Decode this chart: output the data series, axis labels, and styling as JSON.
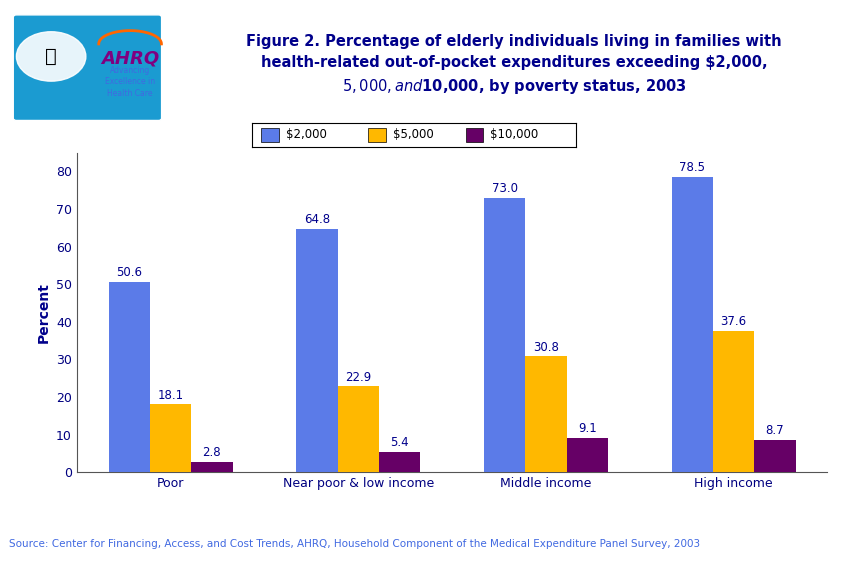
{
  "title": "Figure 2. Percentage of elderly individuals living in families with\nhealth-related out-of-pocket expenditures exceeding $2,000,\n$5,000, and $10,000, by poverty status, 2003",
  "categories": [
    "Poor",
    "Near poor & low income",
    "Middle income",
    "High income"
  ],
  "series": [
    {
      "label": "$2,000",
      "color": "#5B7BE8",
      "values": [
        50.6,
        64.8,
        73.0,
        78.5
      ]
    },
    {
      "label": "$5,000",
      "color": "#FFB800",
      "values": [
        18.1,
        22.9,
        30.8,
        37.6
      ]
    },
    {
      "label": "$10,000",
      "color": "#660066",
      "values": [
        2.8,
        5.4,
        9.1,
        8.7
      ]
    }
  ],
  "ylabel": "Percent",
  "ylim": [
    0,
    85
  ],
  "yticks": [
    0,
    10,
    20,
    30,
    40,
    50,
    60,
    70,
    80
  ],
  "source_text": "Source: Center for Financing, Access, and Cost Trends, AHRQ, Household Component of the Medical Expenditure Panel Survey, 2003",
  "bg_color": "#FFFFFF",
  "chart_bg": "#FFFFFF",
  "bar_width": 0.22,
  "title_color": "#00008B",
  "value_label_color": "#00008B",
  "axis_label_color": "#00008B",
  "tick_label_color": "#000080",
  "source_color": "#4169E1",
  "header_border_color": "#00008B",
  "header_bg": "#FFFFFF",
  "logo_bg": "#1B9BD1"
}
